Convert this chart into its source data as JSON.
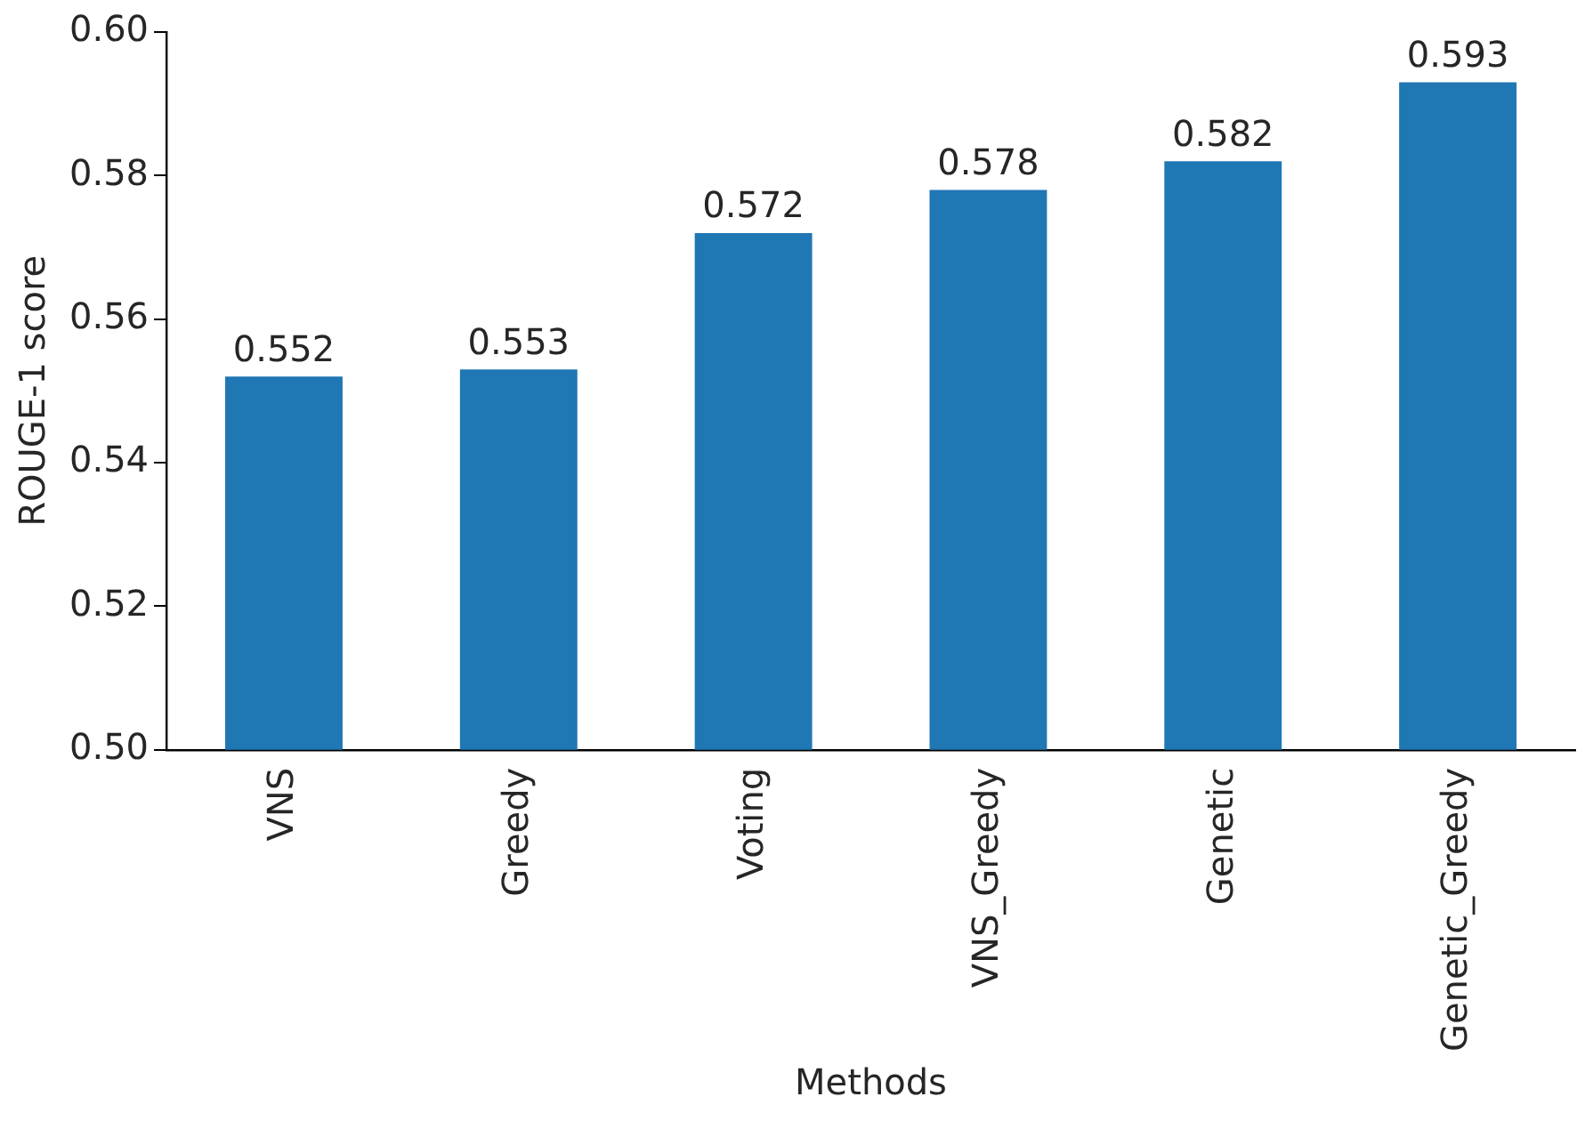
{
  "chart_data": {
    "type": "bar",
    "xlabel": "Methods",
    "ylabel": "ROUGE-1 score",
    "categories": [
      "VNS",
      "Greedy",
      "Voting",
      "VNS_Greedy",
      "Genetic",
      "Genetic_Greedy"
    ],
    "values": [
      0.552,
      0.553,
      0.572,
      0.578,
      0.582,
      0.593
    ],
    "color": "#1f77b4",
    "ylim": [
      0.5,
      0.6
    ],
    "yticks": [
      {
        "value": 0.5,
        "label": "0.50"
      },
      {
        "value": 0.52,
        "label": "0.52"
      },
      {
        "value": 0.54,
        "label": "0.54"
      },
      {
        "value": 0.56,
        "label": "0.56"
      },
      {
        "value": 0.58,
        "label": "0.58"
      },
      {
        "value": 0.6,
        "label": "0.60"
      }
    ],
    "data_labels": true,
    "grid": false,
    "legend": false
  }
}
